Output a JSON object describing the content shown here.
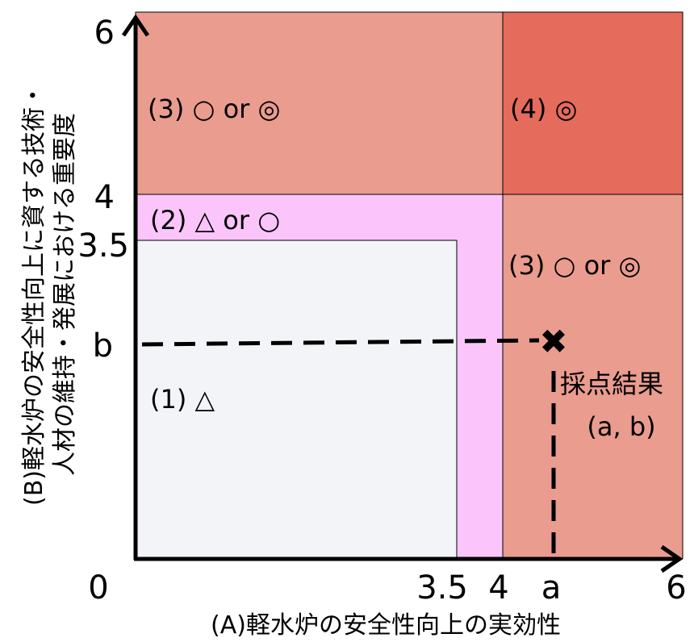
{
  "axes": {
    "x_title": "(A)軽水炉の安全性向上の実効性",
    "y_title_line1": "(B)軽水炉の安全性向上に資する技術・",
    "y_title_line2": "人材の維持・発展における重要度",
    "x_ticks": [
      "0",
      "3.5",
      "4",
      "a",
      "6"
    ],
    "y_ticks": [
      "6",
      "4",
      "3.5",
      "b"
    ]
  },
  "regions": {
    "r1": "(1) △",
    "r2": "(2) △ or ○",
    "r3_top": "(3) ○ or ◎",
    "r3_right": "(3) ○ or ◎",
    "r4": "(4) ◎"
  },
  "result": {
    "line1": "採点結果",
    "line2": "(a, b)",
    "marker": "✖"
  },
  "colors": {
    "region1": "#f3f4f7",
    "region2": "#fbc5fb",
    "region3": "#ea9c8f",
    "region4": "#e56b5c"
  }
}
